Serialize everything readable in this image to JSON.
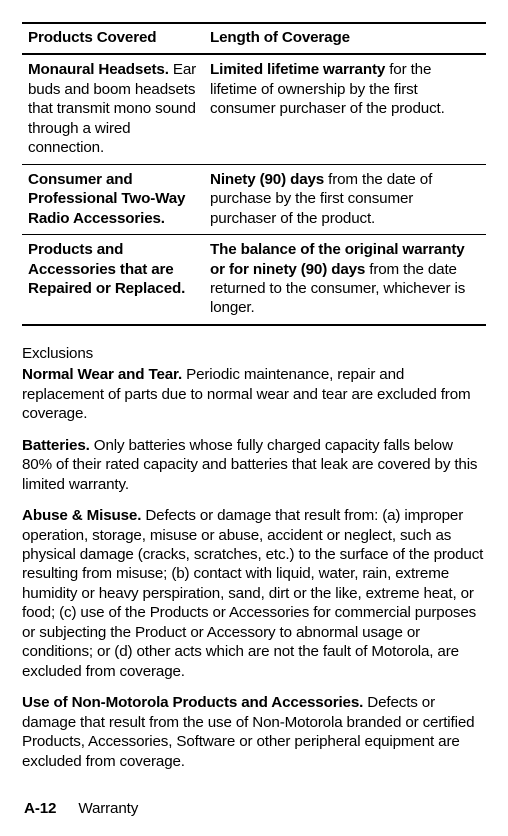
{
  "table": {
    "headers": {
      "products": "Products Covered",
      "length": "Length of Coverage"
    },
    "rows": [
      {
        "product_bold": "Monaural Headsets.",
        "product_rest": " Ear buds and boom headsets that transmit mono sound through a wired connection.",
        "coverage_bold": "Limited lifetime warranty",
        "coverage_rest": " for the lifetime of ownership by the first consumer purchaser of the product."
      },
      {
        "product_bold": "Consumer and Professional Two-Way Radio Accessories.",
        "product_rest": "",
        "coverage_bold": "Ninety (90) days",
        "coverage_rest": " from the date of purchase by the first consumer purchaser of the product."
      },
      {
        "product_bold": "Products and Accessories that are Repaired or Replaced.",
        "product_rest": "",
        "coverage_bold": "The balance of the original warranty or for ninety (90) days",
        "coverage_rest": " from the date returned to the consumer, whichever is longer."
      }
    ]
  },
  "exclusions_heading": "Exclusions",
  "paragraphs": [
    {
      "bold": "Normal Wear and Tear.",
      "rest": " Periodic maintenance, repair and replacement of parts due to normal wear and tear are excluded from coverage."
    },
    {
      "bold": "Batteries.",
      "rest": " Only batteries whose fully charged capacity falls below 80% of their rated capacity and batteries that leak are covered by this limited warranty."
    },
    {
      "bold": "Abuse & Misuse.",
      "rest": " Defects or damage that result from: (a) improper operation, storage, misuse or abuse, accident or neglect, such as physical damage (cracks, scratches, etc.) to the surface of the product resulting from misuse; (b) contact with liquid, water, rain, extreme humidity or heavy perspiration, sand, dirt or the like, extreme heat, or food; (c) use of the Products or Accessories for commercial purposes or subjecting the Product or Accessory to abnormal usage or conditions; or (d) other acts which are not the fault of Motorola, are excluded from coverage."
    },
    {
      "bold": "Use of Non-Motorola Products and Accessories.",
      "rest": " Defects or damage that result from the use of Non-Motorola branded or certified Products, Accessories, Software or other peripheral equipment are excluded from coverage."
    }
  ],
  "footer": {
    "page_num": "A-12",
    "section": "Warranty"
  }
}
